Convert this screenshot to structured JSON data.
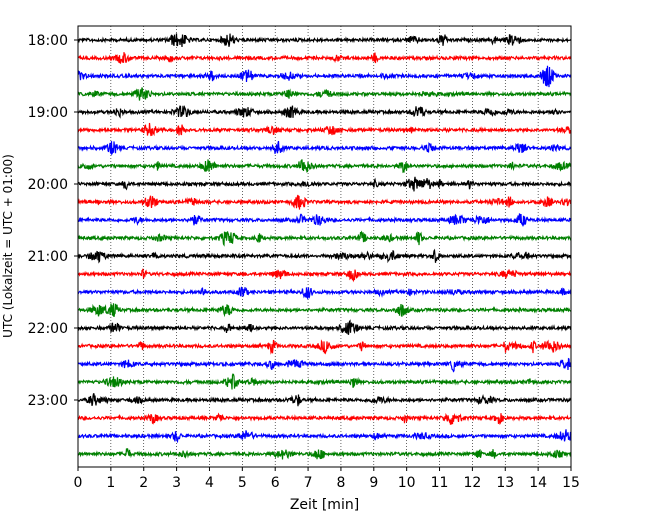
{
  "chart_data": {
    "type": "line",
    "title": "",
    "xlabel": "Zeit  [min]",
    "ylabel": "UTC (Lokalzeit = UTC + 01:00)",
    "xlim": [
      0,
      15
    ],
    "x_ticks": [
      "0",
      "1",
      "2",
      "3",
      "4",
      "5",
      "6",
      "7",
      "8",
      "9",
      "10",
      "11",
      "12",
      "13",
      "14",
      "15"
    ],
    "y_tick_labels": [
      "18:00",
      "19:00",
      "20:00",
      "21:00",
      "22:00",
      "23:00"
    ],
    "x_grid": "dotted vertical lines at each minute",
    "trace_colors": [
      "#000000",
      "#ff0000",
      "#0000ff",
      "#008000"
    ],
    "traces_start": "18:00",
    "trace_interval_minutes": 15,
    "trace_count": 24,
    "legend": "none"
  }
}
